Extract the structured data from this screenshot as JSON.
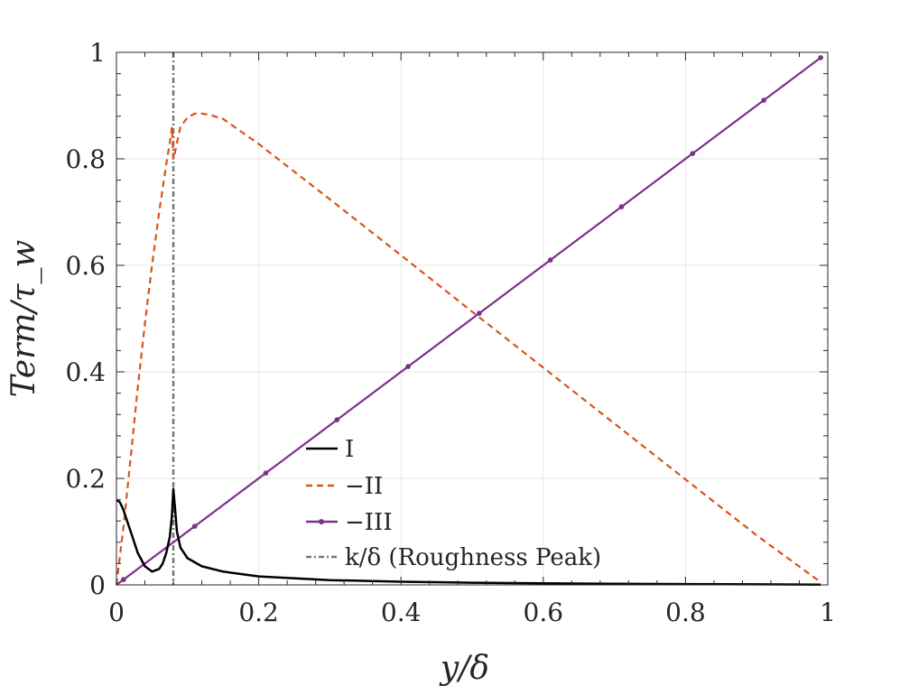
{
  "chart_data": {
    "type": "line",
    "xlabel": "y/δ",
    "ylabel": "Term/τ_w",
    "xlim": [
      0,
      1
    ],
    "ylim": [
      0,
      1
    ],
    "grid": true,
    "legend_position": "center-left",
    "x_tick_labels": [
      "0",
      "0.2",
      "0.4",
      "0.6",
      "0.8",
      "1"
    ],
    "y_tick_labels": [
      "0",
      "0.2",
      "0.4",
      "0.6",
      "0.8",
      "1"
    ],
    "series": [
      {
        "name": "I",
        "color": "#000000",
        "style": "solid",
        "x": [
          0.0,
          0.005,
          0.01,
          0.015,
          0.02,
          0.03,
          0.04,
          0.05,
          0.06,
          0.065,
          0.07,
          0.075,
          0.078,
          0.08,
          0.082,
          0.085,
          0.09,
          0.1,
          0.12,
          0.15,
          0.2,
          0.3,
          0.4,
          0.5,
          0.6,
          0.7,
          0.8,
          0.9,
          0.99
        ],
        "y": [
          0.16,
          0.155,
          0.14,
          0.12,
          0.1,
          0.06,
          0.035,
          0.025,
          0.03,
          0.04,
          0.06,
          0.09,
          0.13,
          0.18,
          0.15,
          0.1,
          0.07,
          0.05,
          0.035,
          0.025,
          0.016,
          0.009,
          0.006,
          0.004,
          0.003,
          0.002,
          0.0015,
          0.001,
          0.0005
        ]
      },
      {
        "name": "−II",
        "color": "#D95319",
        "style": "dashed",
        "x": [
          0.0,
          0.01,
          0.02,
          0.03,
          0.04,
          0.05,
          0.06,
          0.07,
          0.075,
          0.078,
          0.08,
          0.082,
          0.085,
          0.09,
          0.1,
          0.11,
          0.12,
          0.13,
          0.15,
          0.2,
          0.3,
          0.4,
          0.5,
          0.6,
          0.7,
          0.8,
          0.9,
          0.99
        ],
        "y": [
          0.0,
          0.11,
          0.24,
          0.37,
          0.49,
          0.6,
          0.7,
          0.79,
          0.83,
          0.86,
          0.8,
          0.81,
          0.83,
          0.86,
          0.878,
          0.885,
          0.885,
          0.883,
          0.875,
          0.828,
          0.724,
          0.619,
          0.513,
          0.408,
          0.303,
          0.198,
          0.093,
          0.005
        ]
      },
      {
        "name": "−III",
        "color": "#7E2F8E",
        "style": "solid-with-dot-markers",
        "x": [
          0.0,
          0.99
        ],
        "y": [
          0.0,
          0.99
        ],
        "marker_x": [
          0.01,
          0.11,
          0.21,
          0.31,
          0.41,
          0.51,
          0.61,
          0.71,
          0.81,
          0.91,
          0.99
        ],
        "marker_y": [
          0.01,
          0.11,
          0.21,
          0.31,
          0.41,
          0.51,
          0.61,
          0.71,
          0.81,
          0.91,
          0.99
        ]
      },
      {
        "name": "k/δ (Roughness Peak)",
        "color": "#777777",
        "style": "dash-dot-vertical",
        "x_value": 0.08
      }
    ]
  }
}
